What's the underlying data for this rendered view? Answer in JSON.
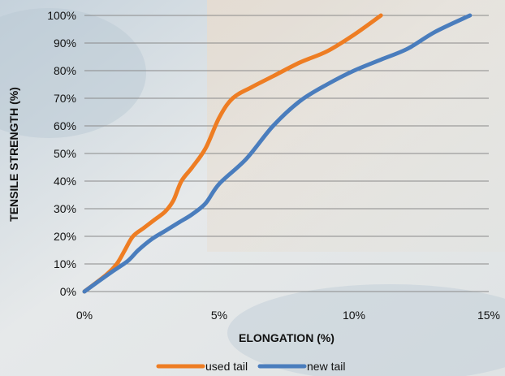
{
  "chart_data": {
    "type": "line",
    "title": "",
    "xlabel": "ELONGATION (%)",
    "ylabel": "TENSILE STRENGTH (%)",
    "xlim": [
      0,
      15
    ],
    "ylim": [
      0,
      100
    ],
    "x_ticks": [
      0,
      5,
      10,
      15
    ],
    "x_tick_labels": [
      "0%",
      "5%",
      "10%",
      "15%"
    ],
    "y_ticks": [
      0,
      10,
      20,
      30,
      40,
      50,
      60,
      70,
      80,
      90,
      100
    ],
    "y_tick_labels": [
      "0%",
      "10%",
      "20%",
      "30%",
      "40%",
      "50%",
      "60%",
      "70%",
      "80%",
      "90%",
      "100%"
    ],
    "grid": true,
    "legend_position": "bottom",
    "series": [
      {
        "name": "used tail",
        "color": "#ee7d23",
        "x": [
          0,
          0.8,
          1.2,
          1.5,
          1.8,
          2.2,
          2.6,
          3.0,
          3.3,
          3.6,
          4.0,
          4.5,
          5.0,
          5.5,
          6.2,
          7.0,
          8.0,
          9.0,
          10.0,
          11.0
        ],
        "y": [
          0,
          6,
          10,
          15,
          20,
          23,
          26,
          29,
          33,
          40,
          45,
          52,
          63,
          70,
          74,
          78,
          83,
          87,
          93,
          100
        ]
      },
      {
        "name": "new tail",
        "color": "#4a7dbd",
        "x": [
          0,
          1.0,
          1.6,
          2.0,
          2.5,
          3.0,
          3.5,
          4.0,
          4.5,
          5.0,
          6.0,
          7.0,
          8.0,
          9.0,
          10.0,
          11.0,
          12.0,
          13.0,
          14.3
        ],
        "y": [
          0,
          7,
          11,
          15,
          19,
          22,
          25,
          28,
          32,
          39,
          48,
          60,
          69,
          75,
          80,
          84,
          88,
          94,
          100
        ]
      }
    ]
  }
}
